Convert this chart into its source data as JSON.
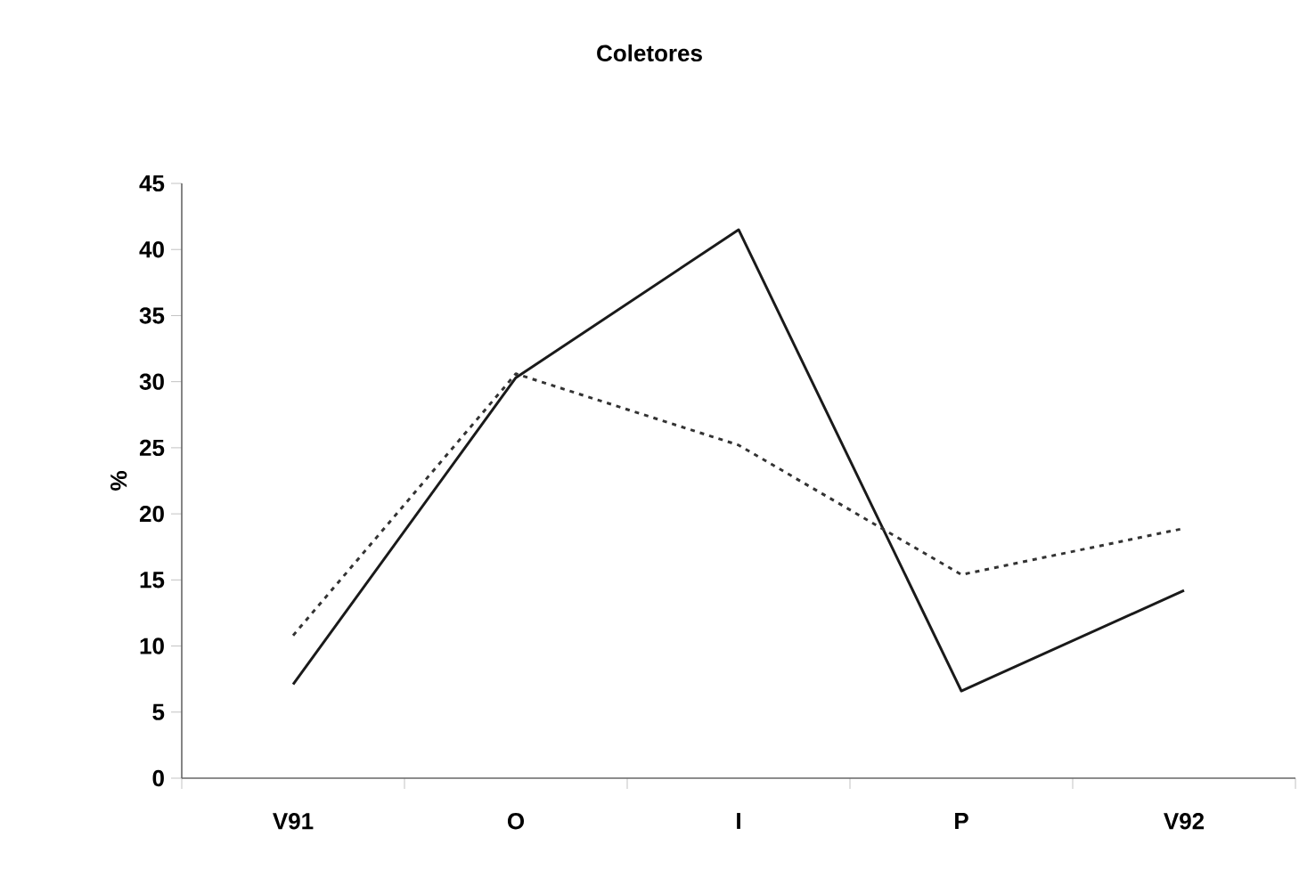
{
  "chart_data": {
    "type": "line",
    "title": "Coletores",
    "ylabel": "%",
    "categories": [
      "V91",
      "O",
      "I",
      "P",
      "V92"
    ],
    "series": [
      {
        "color": "#1a1a1a",
        "line_style": "solid",
        "values": [
          7.1,
          30.3,
          41.5,
          6.6,
          14.2
        ]
      },
      {
        "color": "#333333",
        "line_style": "dotted",
        "values": [
          10.8,
          30.6,
          25.2,
          15.4,
          18.9
        ]
      }
    ],
    "ylim": [
      0,
      45
    ],
    "yticks": [
      0,
      5,
      10,
      15,
      20,
      25,
      30,
      35,
      40,
      45
    ],
    "grid": false,
    "marker": "none"
  }
}
